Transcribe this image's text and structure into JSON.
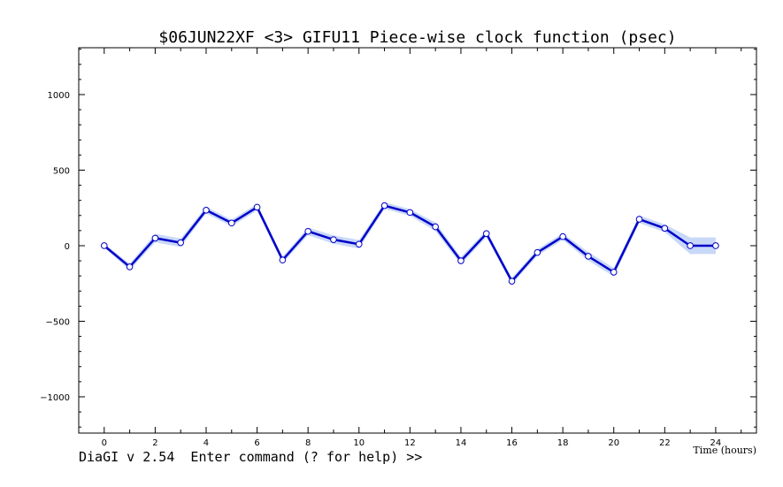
{
  "chart_data": {
    "type": "line",
    "title": "$06JUN22XF <3>   GIFU11     Piece-wise clock function (psec)",
    "xlabel": "Time (hours)",
    "ylabel": "",
    "xlim": [
      -1,
      25.6
    ],
    "ylim": [
      -1240,
      1310
    ],
    "x_ticks": [
      0,
      2,
      4,
      6,
      8,
      10,
      12,
      14,
      16,
      18,
      20,
      22,
      24
    ],
    "x_tick_labels": [
      "0",
      "2",
      "4",
      "6",
      "8",
      "10",
      "12",
      "14",
      "16",
      "18",
      "20",
      "22",
      "24"
    ],
    "y_ticks": [
      -1000,
      -500,
      0,
      500,
      1000
    ],
    "y_tick_labels": [
      "−1000",
      "−500",
      "0",
      "500",
      "1000"
    ],
    "grid": false,
    "series": [
      {
        "x": [
          0,
          1,
          2,
          3,
          4,
          5,
          6,
          7,
          8,
          9,
          10,
          11,
          12,
          13,
          14,
          15,
          16,
          17,
          18,
          19,
          20,
          21,
          22,
          23,
          24
        ],
        "values": [
          0,
          -140,
          50,
          20,
          235,
          150,
          255,
          -95,
          95,
          40,
          10,
          265,
          220,
          125,
          -100,
          80,
          -235,
          -45,
          60,
          -70,
          -175,
          175,
          115,
          0,
          0
        ],
        "errors": [
          12,
          22,
          28,
          28,
          22,
          22,
          22,
          22,
          25,
          28,
          28,
          22,
          22,
          28,
          25,
          22,
          22,
          22,
          22,
          28,
          28,
          25,
          25,
          55,
          55
        ]
      }
    ],
    "colors": {
      "line": "#0000c8",
      "band": "#c8d8f8",
      "marker_fill": "#ffffff"
    }
  },
  "prompt": {
    "text": "DiaGI v 2.54  Enter command (? for help) >>"
  }
}
